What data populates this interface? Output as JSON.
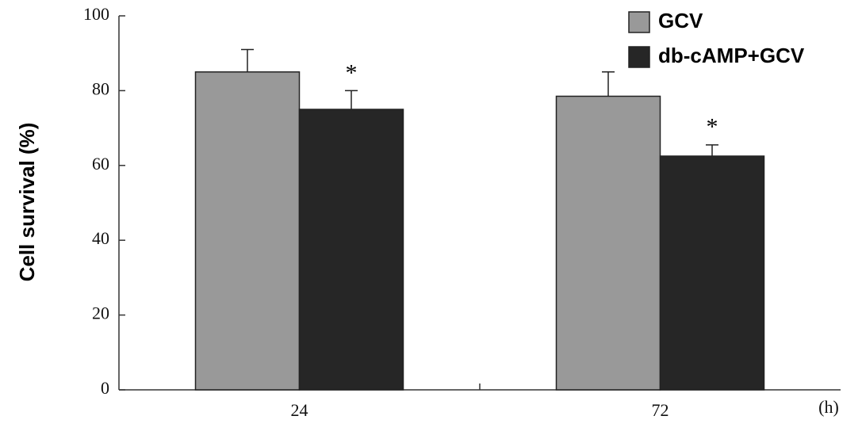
{
  "chart_data": {
    "type": "bar",
    "ylabel": "Cell survival (%)",
    "xlabel": "(h)",
    "categories": [
      "24",
      "72"
    ],
    "series": [
      {
        "name": "GCV",
        "color": "#999999",
        "values": [
          85,
          78.5
        ],
        "errors": [
          6,
          6.5
        ]
      },
      {
        "name": "db-cAMP+GCV",
        "color": "#262626",
        "values": [
          75,
          62.5
        ],
        "errors": [
          5,
          3
        ],
        "significance": [
          "*",
          "*"
        ]
      }
    ],
    "ylim": [
      0,
      100
    ],
    "yticks": [
      0,
      20,
      40,
      60,
      80,
      100
    ],
    "grid": false,
    "legend": "upper right"
  }
}
